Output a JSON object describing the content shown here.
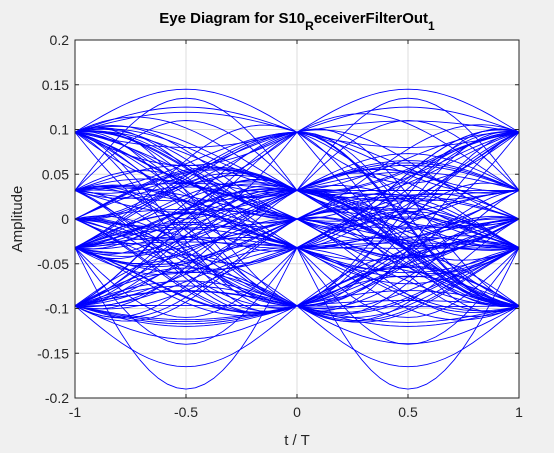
{
  "chart_data": {
    "type": "line",
    "title": {
      "main": "Eye Diagram for S10",
      "sub_r": "R",
      "rest": "eceiverFilterOut",
      "sub_1": "1"
    },
    "xlabel": "t / T",
    "ylabel": "Amplitude",
    "xlim": [
      -1,
      1
    ],
    "ylim": [
      -0.2,
      0.2
    ],
    "xticks": [
      -1,
      -0.5,
      0,
      0.5,
      1
    ],
    "xtick_labels": [
      "-1",
      "-0.5",
      "0",
      "0.5",
      "1"
    ],
    "yticks": [
      -0.2,
      -0.15,
      -0.1,
      -0.05,
      0,
      0.05,
      0.1,
      0.15,
      0.2
    ],
    "ytick_labels": [
      "-0.2",
      "-0.15",
      "-0.1",
      "-0.05",
      "0",
      "0.05",
      "0.1",
      "0.15",
      "0.2"
    ],
    "grid": true,
    "line_color": "#0000ff",
    "levels": [
      -0.097,
      -0.032,
      0.0,
      0.032,
      0.097
    ],
    "transition_peaks": [
      -0.19,
      -0.165,
      -0.14,
      -0.12,
      -0.11,
      -0.08,
      -0.06,
      -0.04,
      -0.02,
      0.0,
      0.02,
      0.04,
      0.06,
      0.08,
      0.11,
      0.125,
      0.135,
      0.145
    ]
  }
}
